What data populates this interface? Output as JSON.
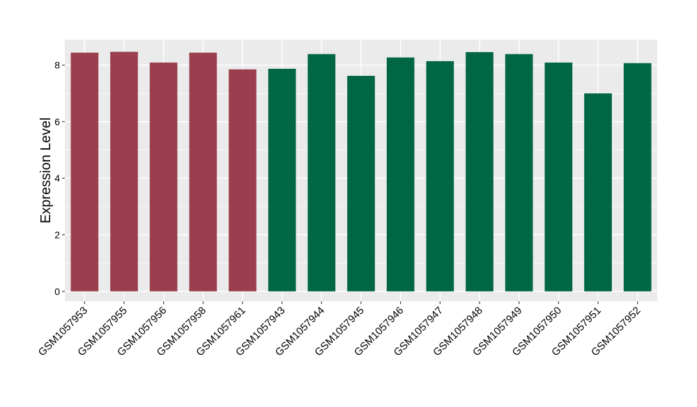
{
  "chart_data": {
    "type": "bar",
    "title": "",
    "xlabel": "",
    "ylabel": "Expression Level",
    "ylim": [
      -0.35,
      8.9
    ],
    "yticks": [
      0,
      2,
      4,
      6,
      8
    ],
    "grid": true,
    "categories": [
      "GSM1057953",
      "GSM1057955",
      "GSM1057956",
      "GSM1057958",
      "GSM1057961",
      "GSM1057943",
      "GSM1057944",
      "GSM1057945",
      "GSM1057946",
      "GSM1057947",
      "GSM1057948",
      "GSM1057949",
      "GSM1057950",
      "GSM1057951",
      "GSM1057952"
    ],
    "values": [
      8.44,
      8.47,
      8.09,
      8.44,
      7.85,
      7.87,
      8.39,
      7.62,
      8.27,
      8.14,
      8.46,
      8.39,
      8.09,
      7.0,
      8.07
    ],
    "bar_colors": [
      "#9b3f4e",
      "#9b3f4e",
      "#9b3f4e",
      "#9b3f4e",
      "#9b3f4e",
      "#006644",
      "#006644",
      "#006644",
      "#006644",
      "#006644",
      "#006644",
      "#006644",
      "#006644",
      "#006644",
      "#006644"
    ],
    "colors": {
      "panel_background": "#ebebeb",
      "gridline": "#ffffff",
      "text": "#000000",
      "tick": "#333333"
    }
  }
}
